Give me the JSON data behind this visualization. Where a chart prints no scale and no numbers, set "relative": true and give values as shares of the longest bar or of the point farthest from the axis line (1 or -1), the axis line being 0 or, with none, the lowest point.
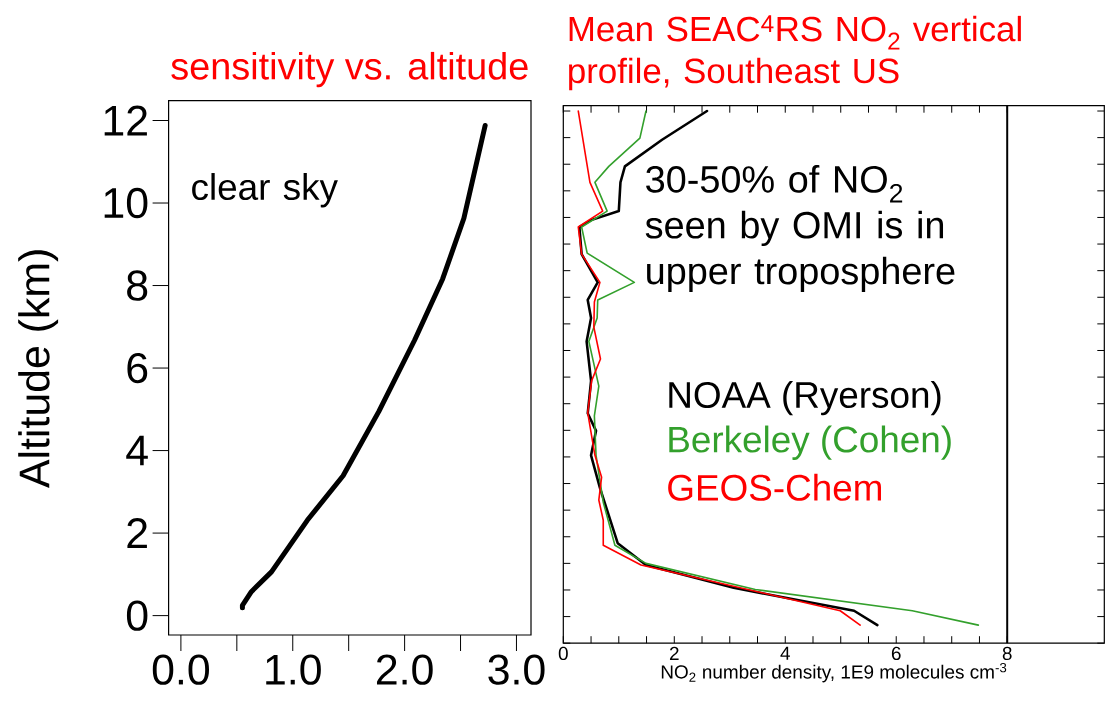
{
  "chart_data": [
    {
      "type": "line",
      "title": "sensitivity vs. altitude",
      "ylabel": "Altitude (km)",
      "color": "#000000",
      "x": [
        0.55,
        0.55,
        0.63,
        0.81,
        1.13,
        1.45,
        1.77,
        2.09,
        2.34,
        2.53,
        2.72
      ],
      "values": [
        0.19,
        0.25,
        0.58,
        1.06,
        2.31,
        3.39,
        4.95,
        6.68,
        8.16,
        9.63,
        11.88
      ],
      "xlim": [
        -0.11,
        3.13
      ],
      "ylim": [
        -0.47,
        12.48
      ],
      "xticks": [
        {
          "value": 0,
          "label": "0.0"
        },
        {
          "value": 0.5,
          "label": null
        },
        {
          "value": 1,
          "label": "1.0"
        },
        {
          "value": 1.5,
          "label": null
        },
        {
          "value": 2,
          "label": "2.0"
        },
        {
          "value": 2.5,
          "label": null
        },
        {
          "value": 3,
          "label": "3.0"
        }
      ],
      "yticks": [
        0,
        2,
        4,
        6,
        8,
        10,
        12
      ],
      "annotations": [
        "clear sky"
      ]
    },
    {
      "type": "line",
      "title": "Mean SEAC$^{4}$RS NO$_{2}$ vertical profile, Southeast US",
      "xlabel": "NO$_{2}$ number density, 1E9 molecules cm$^{-3}$",
      "series": [
        {
          "name": "NOAA (Ryerson)",
          "color": "#000000",
          "x": [
            5.66,
            5.24,
            3.07,
            1.49,
            0.98,
            0.66,
            0.5,
            0.59,
            0.44,
            0.5,
            0.42,
            0.5,
            0.44,
            0.62,
            0.33,
            0.29,
            0.5,
            1.0,
            1.03,
            1.11,
            1.78,
            2.59
          ],
          "values": [
            0.034,
            0.061,
            0.104,
            0.147,
            0.188,
            0.292,
            0.353,
            0.399,
            0.432,
            0.493,
            0.567,
            0.611,
            0.645,
            0.678,
            0.731,
            0.782,
            0.795,
            0.812,
            0.866,
            0.896,
            0.946,
            1
          ]
        },
        {
          "name": "Berkeley (Cohen)",
          "color": "#33a02c",
          "x": [
            7.48,
            6.29,
            3.46,
            1.49,
            0.93,
            0.72,
            0.59,
            0.56,
            0.64,
            0.46,
            0.61,
            0.62,
            1.28,
            0.43,
            0.33,
            0.79,
            0.57,
            0.82,
            1.38,
            1.49
          ],
          "values": [
            0.034,
            0.061,
            0.101,
            0.15,
            0.184,
            0.265,
            0.353,
            0.427,
            0.483,
            0.567,
            0.611,
            0.645,
            0.678,
            0.733,
            0.782,
            0.812,
            0.866,
            0.896,
            0.949,
            1
          ]
        },
        {
          "name": "GEOS-Chem",
          "color": "#ff0000",
          "x": [
            5.35,
            4.99,
            1.4,
            0.72,
            0.72,
            0.64,
            0.69,
            0.57,
            0.44,
            0.51,
            0.67,
            0.55,
            0.56,
            0.66,
            0.33,
            0.27,
            0.71,
            0.48,
            0.27
          ],
          "values": [
            0.034,
            0.061,
            0.147,
            0.184,
            0.231,
            0.269,
            0.312,
            0.353,
            0.433,
            0.493,
            0.534,
            0.594,
            0.641,
            0.678,
            0.731,
            0.782,
            0.812,
            0.866,
            1
          ]
        }
      ],
      "xlim": [
        0,
        9.75
      ],
      "relative": true,
      "xticks": [
        0,
        {
          "value": 0.5,
          "label": null
        },
        {
          "value": 1,
          "label": null
        },
        {
          "value": 1.5,
          "label": null
        },
        2,
        {
          "value": 2.5,
          "label": null
        },
        {
          "value": 3,
          "label": null
        },
        {
          "value": 3.5,
          "label": null
        },
        4,
        {
          "value": 4.5,
          "label": null
        },
        {
          "value": 5,
          "label": null
        },
        {
          "value": 5.5,
          "label": null
        },
        6,
        {
          "value": 6.5,
          "label": null
        },
        {
          "value": 7,
          "label": null
        },
        {
          "value": 7.5,
          "label": null
        },
        8
      ],
      "tick_labels": "x",
      "legend": "center",
      "ref_lines": [
        {
          "axis": "x",
          "value": 8,
          "color": "#000000"
        }
      ],
      "annotations": [
        "30-50% of NO$_{2}$ seen by OMI is in upper troposphere"
      ]
    }
  ]
}
